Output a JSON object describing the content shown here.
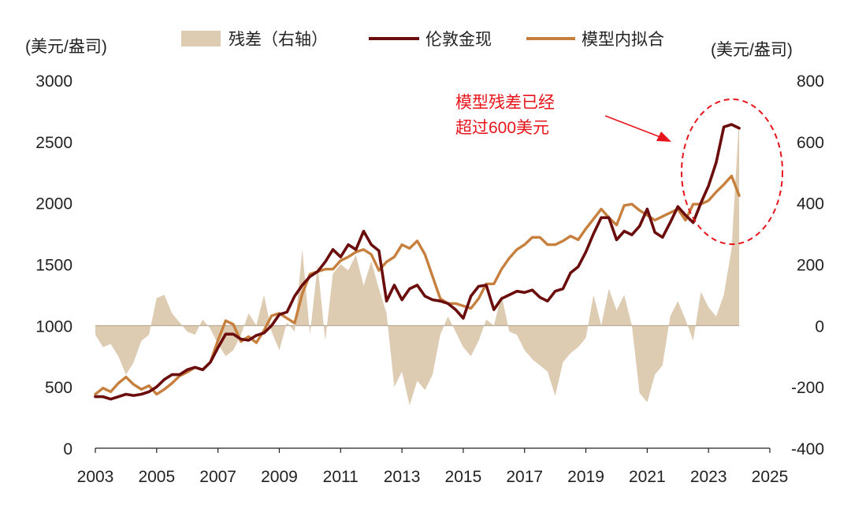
{
  "colors": {
    "residual": "#DDCBB2",
    "gold": "#6B0D0D",
    "model": "#C77F3E",
    "annotation": "#E8141B",
    "axis": "#222222"
  },
  "chart_data": {
    "type": "line+area",
    "title": "",
    "ylabel_left": "(美元/盎司)",
    "ylabel_right": "(美元/盎司)",
    "x_ticks": [
      "2003",
      "2005",
      "2007",
      "2009",
      "2011",
      "2013",
      "2015",
      "2017",
      "2019",
      "2021",
      "2023",
      "2025"
    ],
    "xlim": [
      2003,
      2025
    ],
    "y_left_ticks": [
      "0",
      "500",
      "1000",
      "1500",
      "2000",
      "2500",
      "3000"
    ],
    "ylim_left": [
      0,
      3000
    ],
    "y_right_ticks": [
      "-400",
      "-200",
      "0",
      "200",
      "400",
      "600",
      "800"
    ],
    "ylim_right": [
      -400,
      800
    ],
    "legend": {
      "residual": "残差（右轴）",
      "gold": "伦敦金现",
      "model": "模型内拟合"
    },
    "annotation": {
      "line1": "模型残差已经",
      "line2": "超过600美元"
    },
    "series": [
      {
        "name": "残差（右轴）",
        "type": "area",
        "axis": "right",
        "x": [
          2003.0,
          2003.25,
          2003.5,
          2003.75,
          2004.0,
          2004.25,
          2004.5,
          2004.75,
          2005.0,
          2005.25,
          2005.5,
          2005.75,
          2006.0,
          2006.25,
          2006.5,
          2006.75,
          2007.0,
          2007.25,
          2007.5,
          2007.75,
          2008.0,
          2008.25,
          2008.5,
          2008.75,
          2009.0,
          2009.25,
          2009.5,
          2009.75,
          2010.0,
          2010.25,
          2010.5,
          2010.75,
          2011.0,
          2011.25,
          2011.5,
          2011.75,
          2012.0,
          2012.25,
          2012.5,
          2012.75,
          2013.0,
          2013.25,
          2013.5,
          2013.75,
          2014.0,
          2014.25,
          2014.5,
          2014.75,
          2015.0,
          2015.25,
          2015.5,
          2015.75,
          2016.0,
          2016.25,
          2016.5,
          2016.75,
          2017.0,
          2017.25,
          2017.5,
          2017.75,
          2018.0,
          2018.25,
          2018.5,
          2018.75,
          2019.0,
          2019.25,
          2019.5,
          2019.75,
          2020.0,
          2020.25,
          2020.5,
          2020.75,
          2021.0,
          2021.25,
          2021.5,
          2021.75,
          2022.0,
          2022.25,
          2022.5,
          2022.75,
          2023.0,
          2023.25,
          2023.5,
          2023.75,
          2024.0
        ],
        "values": [
          -30,
          -70,
          -60,
          -100,
          -160,
          -120,
          -50,
          -30,
          90,
          100,
          40,
          10,
          -20,
          -30,
          20,
          -10,
          -60,
          -100,
          -80,
          -30,
          40,
          0,
          100,
          -20,
          -80,
          10,
          -20,
          250,
          -30,
          200,
          -50,
          170,
          200,
          180,
          230,
          130,
          210,
          120,
          40,
          -200,
          -150,
          -260,
          -180,
          -210,
          -160,
          -30,
          30,
          -20,
          -70,
          -100,
          -50,
          20,
          0,
          100,
          -20,
          -30,
          -80,
          -110,
          -130,
          -150,
          -230,
          -120,
          -90,
          -70,
          -40,
          100,
          0,
          120,
          50,
          100,
          0,
          -220,
          -250,
          -160,
          -130,
          30,
          80,
          20,
          -50,
          110,
          60,
          30,
          100,
          250,
          680
        ]
      },
      {
        "name": "伦敦金现",
        "type": "line",
        "axis": "left",
        "x": [
          2003.0,
          2003.25,
          2003.5,
          2003.75,
          2004.0,
          2004.25,
          2004.5,
          2004.75,
          2005.0,
          2005.25,
          2005.5,
          2005.75,
          2006.0,
          2006.25,
          2006.5,
          2006.75,
          2007.0,
          2007.25,
          2007.5,
          2007.75,
          2008.0,
          2008.25,
          2008.5,
          2008.75,
          2009.0,
          2009.25,
          2009.5,
          2009.75,
          2010.0,
          2010.25,
          2010.5,
          2010.75,
          2011.0,
          2011.25,
          2011.5,
          2011.75,
          2012.0,
          2012.25,
          2012.5,
          2012.75,
          2013.0,
          2013.25,
          2013.5,
          2013.75,
          2014.0,
          2014.25,
          2014.5,
          2014.75,
          2015.0,
          2015.25,
          2015.5,
          2015.75,
          2016.0,
          2016.25,
          2016.5,
          2016.75,
          2017.0,
          2017.25,
          2017.5,
          2017.75,
          2018.0,
          2018.25,
          2018.5,
          2018.75,
          2019.0,
          2019.25,
          2019.5,
          2019.75,
          2020.0,
          2020.25,
          2020.5,
          2020.75,
          2021.0,
          2021.25,
          2021.5,
          2021.75,
          2022.0,
          2022.25,
          2022.5,
          2022.75,
          2023.0,
          2023.25,
          2023.5,
          2023.75,
          2024.0
        ],
        "values": [
          420,
          420,
          400,
          420,
          440,
          430,
          440,
          460,
          500,
          560,
          600,
          600,
          640,
          660,
          640,
          700,
          820,
          930,
          930,
          890,
          880,
          920,
          940,
          1000,
          1090,
          1110,
          1240,
          1330,
          1400,
          1440,
          1520,
          1620,
          1560,
          1660,
          1620,
          1770,
          1660,
          1610,
          1200,
          1330,
          1210,
          1300,
          1330,
          1240,
          1210,
          1200,
          1180,
          1130,
          1060,
          1240,
          1320,
          1330,
          1130,
          1220,
          1250,
          1280,
          1270,
          1290,
          1230,
          1200,
          1280,
          1300,
          1430,
          1480,
          1600,
          1750,
          1880,
          1880,
          1700,
          1770,
          1740,
          1810,
          1950,
          1760,
          1720,
          1840,
          1970,
          1900,
          1840,
          2000,
          2140,
          2330,
          2620,
          2640,
          2610
        ]
      },
      {
        "name": "模型内拟合",
        "type": "line",
        "axis": "left",
        "x": [
          2003.0,
          2003.25,
          2003.5,
          2003.75,
          2004.0,
          2004.25,
          2004.5,
          2004.75,
          2005.0,
          2005.25,
          2005.5,
          2005.75,
          2006.0,
          2006.25,
          2006.5,
          2006.75,
          2007.0,
          2007.25,
          2007.5,
          2007.75,
          2008.0,
          2008.25,
          2008.5,
          2008.75,
          2009.0,
          2009.25,
          2009.5,
          2009.75,
          2010.0,
          2010.25,
          2010.5,
          2010.75,
          2011.0,
          2011.25,
          2011.5,
          2011.75,
          2012.0,
          2012.25,
          2012.5,
          2012.75,
          2013.0,
          2013.25,
          2013.5,
          2013.75,
          2014.0,
          2014.25,
          2014.5,
          2014.75,
          2015.0,
          2015.25,
          2015.5,
          2015.75,
          2016.0,
          2016.25,
          2016.5,
          2016.75,
          2017.0,
          2017.25,
          2017.5,
          2017.75,
          2018.0,
          2018.25,
          2018.5,
          2018.75,
          2019.0,
          2019.25,
          2019.5,
          2019.75,
          2020.0,
          2020.25,
          2020.5,
          2020.75,
          2021.0,
          2021.25,
          2021.5,
          2021.75,
          2022.0,
          2022.25,
          2022.5,
          2022.75,
          2023.0,
          2023.25,
          2023.5,
          2023.75,
          2024.0
        ],
        "values": [
          440,
          490,
          460,
          530,
          580,
          520,
          480,
          510,
          440,
          480,
          530,
          590,
          620,
          660,
          640,
          700,
          880,
          1040,
          1010,
          870,
          910,
          860,
          960,
          1080,
          1100,
          1060,
          1020,
          1260,
          1420,
          1440,
          1460,
          1460,
          1530,
          1560,
          1600,
          1620,
          1580,
          1450,
          1520,
          1560,
          1660,
          1630,
          1690,
          1580,
          1400,
          1220,
          1180,
          1180,
          1160,
          1140,
          1220,
          1340,
          1340,
          1460,
          1550,
          1620,
          1660,
          1720,
          1720,
          1660,
          1660,
          1690,
          1730,
          1700,
          1790,
          1870,
          1950,
          1880,
          1820,
          1980,
          1990,
          1940,
          1900,
          1860,
          1890,
          1920,
          1950,
          1860,
          1990,
          1990,
          2020,
          2090,
          2150,
          2220,
          2060
        ]
      }
    ]
  }
}
